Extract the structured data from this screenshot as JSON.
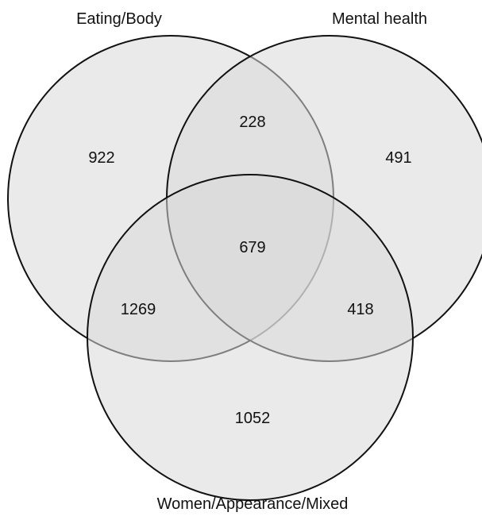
{
  "sets": [
    {
      "id": "eating-body",
      "label": "Eating/Body"
    },
    {
      "id": "mental-health",
      "label": "Mental health"
    },
    {
      "id": "women-appearance-mixed",
      "label": "Women/Appearance/Mixed"
    }
  ],
  "regions": {
    "eating_body_only": "922",
    "mental_health_only": "491",
    "women_appearance_mixed_only": "1052",
    "eating_body_and_mental_health": "228",
    "eating_body_and_women_appearance_mixed": "1269",
    "mental_health_and_women_appearance_mixed": "418",
    "all_three": "679"
  },
  "colors": {
    "fill": "#d9d9d9",
    "stroke": "#111111",
    "background": "#ffffff",
    "text": "#111111"
  }
}
